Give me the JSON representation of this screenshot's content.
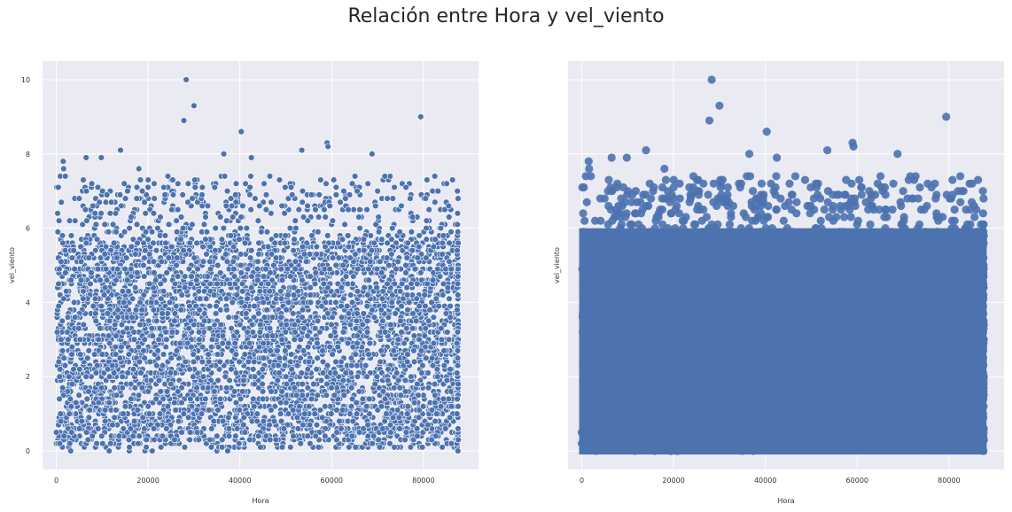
{
  "title": "Relación entre Hora y vel_viento",
  "colors": {
    "background": "#eaeaf2",
    "grid": "#ffffff",
    "marker": "#4c72b0",
    "marker_edge": "#ffffff"
  },
  "chart_data": [
    {
      "type": "scatter",
      "xlabel": "Hora",
      "ylabel": "vel_viento",
      "xlim": [
        -3000,
        92000
      ],
      "ylim": [
        -0.5,
        10.5
      ],
      "xticks": [
        "0",
        "20000",
        "40000",
        "60000",
        "80000"
      ],
      "yticks": [
        "0",
        "2",
        "4",
        "6",
        "8",
        "10"
      ],
      "marker_edge": "white",
      "grid": true,
      "density_note_x_range": [
        0,
        87600
      ],
      "outlier_points": {
        "x": [
          28300,
          30000,
          27800,
          40300,
          79400,
          59000,
          59200,
          14000,
          53500,
          68800,
          36500,
          42500,
          6500,
          1500,
          1600,
          9800,
          18000
        ],
        "y": [
          10.0,
          9.3,
          8.9,
          8.6,
          9.0,
          8.3,
          8.2,
          8.1,
          8.1,
          8.0,
          8.0,
          7.9,
          7.9,
          7.8,
          7.6,
          7.9,
          7.6
        ]
      }
    },
    {
      "type": "scatter",
      "xlabel": "Hora",
      "ylabel": "vel_viento",
      "xlim": [
        -3000,
        92000
      ],
      "ylim": [
        -0.5,
        10.5
      ],
      "xticks": [
        "0",
        "20000",
        "40000",
        "60000",
        "80000"
      ],
      "yticks": [],
      "marker_edge": "none",
      "grid": true,
      "outlier_points": {
        "x": [
          28300,
          30000,
          27800,
          40300,
          79400,
          59000,
          59200,
          14000,
          53500,
          68800,
          36500,
          42500,
          6500,
          1500,
          1600,
          9800,
          18000
        ],
        "y": [
          10.0,
          9.3,
          8.9,
          8.6,
          9.0,
          8.3,
          8.2,
          8.1,
          8.1,
          8.0,
          8.0,
          7.9,
          7.9,
          7.8,
          7.6,
          7.9,
          7.6
        ]
      }
    }
  ]
}
